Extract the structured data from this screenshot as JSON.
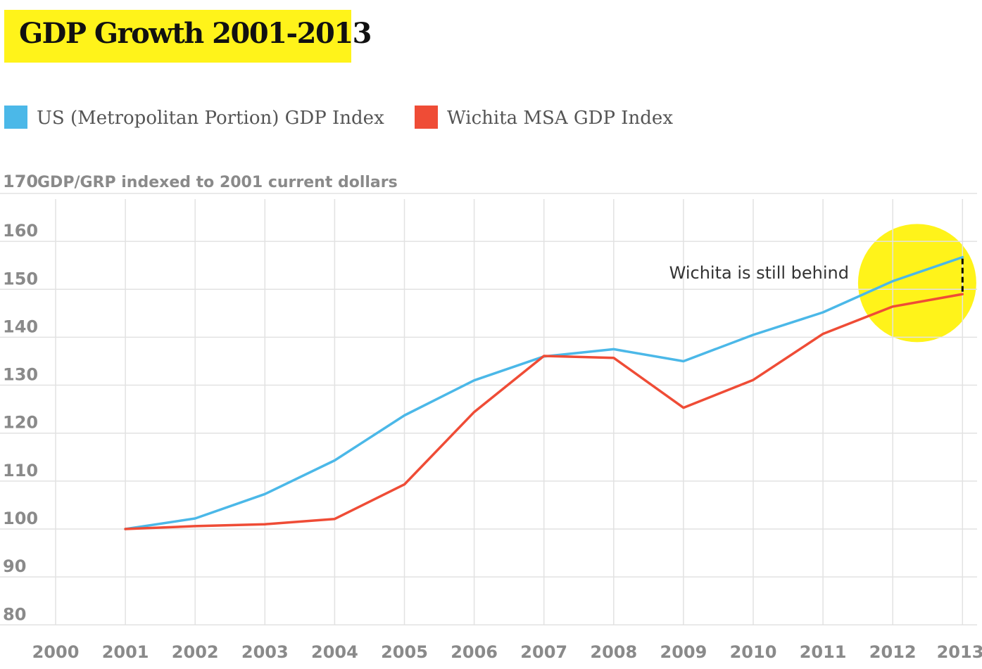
{
  "chart_data": {
    "type": "line",
    "title": "GDP Growth 2001-2013",
    "ylabel": "GDP/GRP indexed to 2001 current dollars",
    "xlim": [
      2000,
      2013
    ],
    "ylim": [
      80,
      170
    ],
    "yticks": [
      80,
      90,
      100,
      110,
      120,
      130,
      140,
      150,
      160,
      170
    ],
    "categories": [
      "2000",
      "2001",
      "2002",
      "2003",
      "2004",
      "2005",
      "2006",
      "2007",
      "2008",
      "2009",
      "2010",
      "2011",
      "2012",
      "2013"
    ],
    "grid": true,
    "legend_position": "top-left",
    "series": [
      {
        "name": "US (Metropolitan Portion) GDP Index",
        "color": "#4bb8e8",
        "x": [
          2001,
          2002,
          2003,
          2004,
          2005,
          2006,
          2007,
          2008,
          2009,
          2010,
          2011,
          2012,
          2013
        ],
        "values": [
          100,
          102.2,
          107.3,
          114.3,
          123.7,
          131.0,
          136.0,
          137.5,
          135.0,
          140.5,
          145.2,
          151.7,
          156.7
        ]
      },
      {
        "name": "Wichita MSA GDP Index",
        "color": "#ef4c36",
        "x": [
          2001,
          2002,
          2003,
          2004,
          2005,
          2006,
          2007,
          2008,
          2009,
          2010,
          2011,
          2012,
          2013
        ],
        "values": [
          100,
          100.6,
          101.0,
          102.1,
          109.3,
          124.4,
          136.1,
          135.7,
          125.3,
          131.1,
          140.7,
          146.4,
          149.0
        ]
      }
    ],
    "annotations": [
      {
        "text": "Wichita is still behind",
        "x": 2013,
        "y_from": 149.0,
        "y_to": 156.7
      }
    ],
    "highlight": {
      "center_x": 2012.35,
      "center_y": 151.3,
      "color": "#fff31a"
    }
  }
}
